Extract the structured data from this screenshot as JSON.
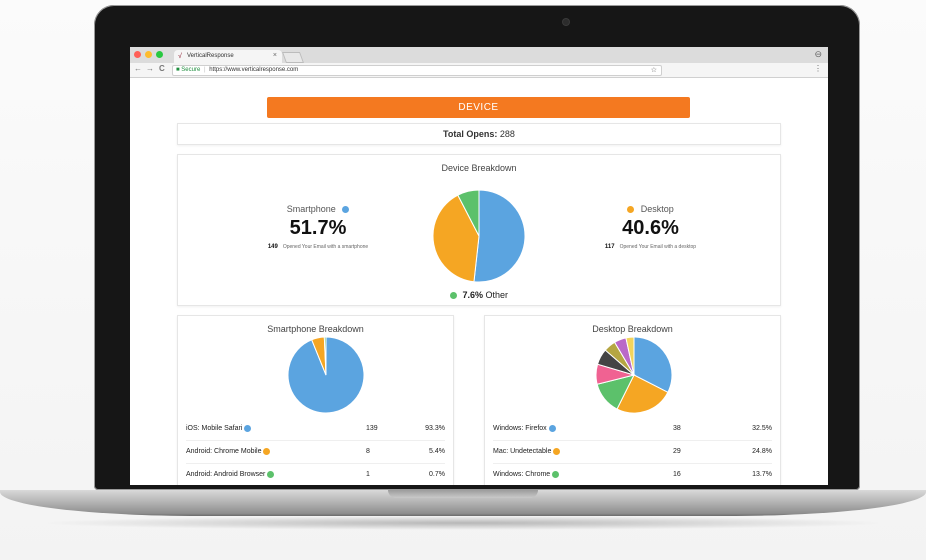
{
  "browser": {
    "tab_title": "VerticalResponse",
    "tab_close": "×",
    "security_label": "Secure",
    "url": "https://www.verticalresponse.com",
    "bookmark_icon": "star-icon",
    "lock_icon": "lock-icon",
    "back_glyph": "←",
    "forward_glyph": "→",
    "reload_glyph": "C",
    "star_glyph": "☆",
    "menu_glyph": "⋮",
    "profile_glyph": "⊖",
    "favicon_glyph": "√",
    "lock_glyph": "🔒",
    "separator": "|"
  },
  "report": {
    "header": "DEVICE",
    "total_label": "Total Opens:",
    "total_value": "288",
    "device_breakdown": {
      "title": "Device Breakdown",
      "smartphone": {
        "label": "Smartphone",
        "percent": "51.7%",
        "count": "149",
        "description": "Opened Your Email with a smartphone"
      },
      "desktop": {
        "label": "Desktop",
        "percent": "40.6%",
        "count": "117",
        "description": "Opened Your Email with a desktop"
      },
      "other": {
        "label": "Other",
        "percent": "7.6%"
      }
    },
    "smartphone_breakdown": {
      "title": "Smartphone Breakdown",
      "rows": [
        {
          "label": "iOS: Mobile Safari",
          "count": "139",
          "percent": "93.3%",
          "color": "#5ba4e0"
        },
        {
          "label": "Android: Chrome Mobile",
          "count": "8",
          "percent": "5.4%",
          "color": "#f5a623"
        },
        {
          "label": "Android: Android Browser",
          "count": "1",
          "percent": "0.7%",
          "color": "#5cc16b"
        }
      ]
    },
    "desktop_breakdown": {
      "title": "Desktop Breakdown",
      "rows": [
        {
          "label": "Windows: Firefox",
          "count": "38",
          "percent": "32.5%",
          "color": "#5ba4e0"
        },
        {
          "label": "Mac: Undetectable",
          "count": "29",
          "percent": "24.8%",
          "color": "#f5a623"
        },
        {
          "label": "Windows: Chrome",
          "count": "16",
          "percent": "13.7%",
          "color": "#5cc16b"
        }
      ]
    }
  },
  "colors": {
    "accent": "#f47920",
    "blue": "#5ba4e0",
    "orange": "#f5a623",
    "green": "#5cc16b",
    "pink": "#f06292",
    "dark": "#444444",
    "olive": "#b5a642",
    "purple": "#ba68c8",
    "yellow": "#f2d45c"
  },
  "chart_data": [
    {
      "type": "pie",
      "title": "Device Breakdown",
      "categories": [
        "Smartphone",
        "Desktop",
        "Other"
      ],
      "values": [
        51.7,
        40.6,
        7.6
      ],
      "colors": [
        "#5ba4e0",
        "#f5a623",
        "#5cc16b"
      ]
    },
    {
      "type": "pie",
      "title": "Smartphone Breakdown",
      "categories": [
        "iOS: Mobile Safari",
        "Android: Chrome Mobile",
        "Android: Android Browser"
      ],
      "values": [
        93.3,
        5.4,
        0.7
      ],
      "colors": [
        "#5ba4e0",
        "#f5a623",
        "#5cc16b"
      ]
    },
    {
      "type": "pie",
      "title": "Desktop Breakdown",
      "categories": [
        "Windows: Firefox",
        "Mac: Undetectable",
        "Windows: Chrome",
        "",
        "",
        "",
        "",
        ""
      ],
      "values": [
        32.5,
        24.8,
        13.7,
        8.5,
        6.8,
        5.1,
        5.1,
        3.4
      ],
      "colors": [
        "#5ba4e0",
        "#f5a623",
        "#5cc16b",
        "#f06292",
        "#444444",
        "#b5a642",
        "#ba68c8",
        "#f2d45c"
      ]
    }
  ]
}
